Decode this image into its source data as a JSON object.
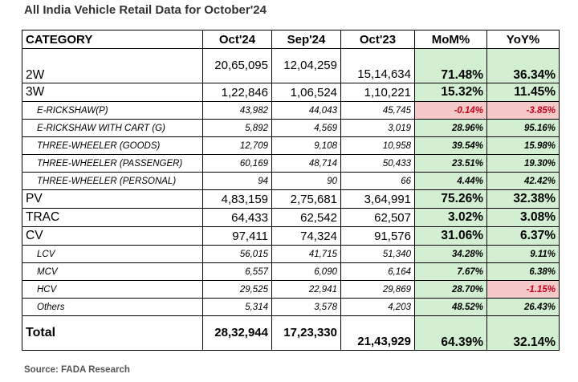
{
  "title": "All India Vehicle Retail Data for October'24",
  "source": "Source: FADA Research",
  "headers": [
    "CATEGORY",
    "Oct'24",
    "Sep'24",
    "Oct'23",
    "MoM%",
    "YoY%"
  ],
  "rows": [
    {
      "category": "2W",
      "oct24": "20,65,095",
      "sep24": "12,04,259",
      "oct23": "15,14,634",
      "mom": "71.48%",
      "yoy": "36.34%",
      "level": "main",
      "tall": true,
      "mom_status": "pos",
      "yoy_status": "pos"
    },
    {
      "category": "3W",
      "oct24": "1,22,846",
      "sep24": "1,06,524",
      "oct23": "1,10,221",
      "mom": "15.32%",
      "yoy": "11.45%",
      "level": "main",
      "mom_status": "pos",
      "yoy_status": "pos"
    },
    {
      "category": "E-RICKSHAW(P)",
      "oct24": "43,982",
      "sep24": "44,043",
      "oct23": "45,745",
      "mom": "-0.14%",
      "yoy": "-3.85%",
      "level": "sub",
      "mom_status": "neg",
      "yoy_status": "neg"
    },
    {
      "category": "E-RICKSHAW WITH CART (G)",
      "oct24": "5,892",
      "sep24": "4,569",
      "oct23": "3,019",
      "mom": "28.96%",
      "yoy": "95.16%",
      "level": "sub",
      "mom_status": "pos",
      "yoy_status": "pos"
    },
    {
      "category": "THREE-WHEELER (GOODS)",
      "oct24": "12,709",
      "sep24": "9,108",
      "oct23": "10,958",
      "mom": "39.54%",
      "yoy": "15.98%",
      "level": "sub",
      "mom_status": "pos",
      "yoy_status": "pos"
    },
    {
      "category": "THREE-WHEELER (PASSENGER)",
      "oct24": "60,169",
      "sep24": "48,714",
      "oct23": "50,433",
      "mom": "23.51%",
      "yoy": "19.30%",
      "level": "sub",
      "mom_status": "pos",
      "yoy_status": "pos"
    },
    {
      "category": "THREE-WHEELER (PERSONAL)",
      "oct24": "94",
      "sep24": "90",
      "oct23": "66",
      "mom": "4.44%",
      "yoy": "42.42%",
      "level": "sub",
      "mom_status": "pos",
      "yoy_status": "pos"
    },
    {
      "category": "PV",
      "oct24": "4,83,159",
      "sep24": "2,75,681",
      "oct23": "3,64,991",
      "mom": "75.26%",
      "yoy": "32.38%",
      "level": "main",
      "mom_status": "pos",
      "yoy_status": "pos"
    },
    {
      "category": "TRAC",
      "oct24": "64,433",
      "sep24": "62,542",
      "oct23": "62,507",
      "mom": "3.02%",
      "yoy": "3.08%",
      "level": "main",
      "mom_status": "pos",
      "yoy_status": "pos"
    },
    {
      "category": "CV",
      "oct24": "97,411",
      "sep24": "74,324",
      "oct23": "91,576",
      "mom": "31.06%",
      "yoy": "6.37%",
      "level": "main",
      "mom_status": "pos",
      "yoy_status": "pos"
    },
    {
      "category": "LCV",
      "oct24": "56,015",
      "sep24": "41,715",
      "oct23": "51,340",
      "mom": "34.28%",
      "yoy": "9.11%",
      "level": "sub",
      "mom_status": "pos",
      "yoy_status": "pos"
    },
    {
      "category": "MCV",
      "oct24": "6,557",
      "sep24": "6,090",
      "oct23": "6,164",
      "mom": "7.67%",
      "yoy": "6.38%",
      "level": "sub",
      "mom_status": "pos",
      "yoy_status": "pos"
    },
    {
      "category": "HCV",
      "oct24": "29,525",
      "sep24": "22,941",
      "oct23": "29,869",
      "mom": "28.70%",
      "yoy": "-1.15%",
      "level": "sub",
      "mom_status": "pos",
      "yoy_status": "neg"
    },
    {
      "category": "Others",
      "oct24": "5,314",
      "sep24": "3,578",
      "oct23": "4,203",
      "mom": "48.52%",
      "yoy": "26.43%",
      "level": "sub",
      "mom_status": "pos",
      "yoy_status": "pos"
    },
    {
      "category": "Total",
      "oct24": "28,32,944",
      "sep24": "17,23,330",
      "oct23": "21,43,929",
      "mom": "64.39%",
      "yoy": "32.14%",
      "level": "main",
      "tall": true,
      "total": true,
      "mom_status": "pos",
      "yoy_status": "pos"
    }
  ],
  "colors": {
    "positive_fill": "#d2efd2",
    "negative_fill": "#f6c9c9",
    "negative_text": "#c0001c"
  }
}
